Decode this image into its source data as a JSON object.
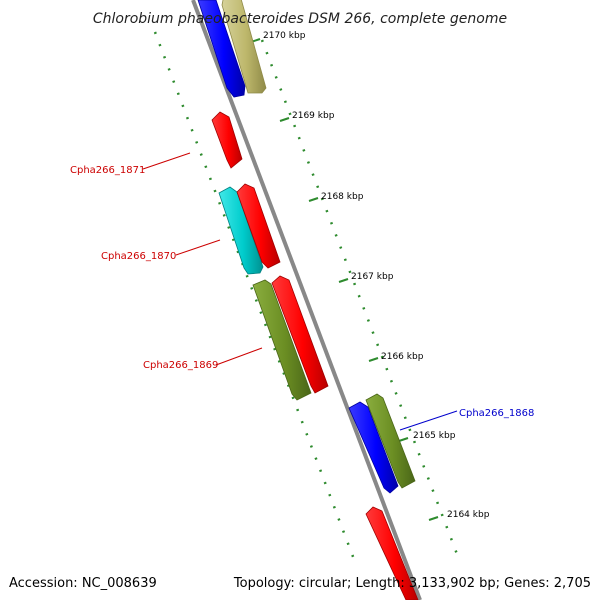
{
  "title": "Chlorobium phaeobacteroides DSM 266, complete genome",
  "footer": {
    "accession": "Accession: NC_008639",
    "topology": "Topology: circular; Length: 3,133,902 bp; Genes: 2,705"
  },
  "ticks": [
    "2170 kbp",
    "2169 kbp",
    "2168 kbp",
    "2167 kbp",
    "2166 kbp",
    "2165 kbp",
    "2164 kbp"
  ],
  "gene_labels": [
    {
      "name": "Cpha266_1871",
      "color": "#cc0000"
    },
    {
      "name": "Cpha266_1870",
      "color": "#cc0000"
    },
    {
      "name": "Cpha266_1869",
      "color": "#cc0000"
    },
    {
      "name": "Cpha266_1868",
      "color": "#0000cc"
    }
  ],
  "colors": {
    "backbone": "#888888",
    "tick_dots": "#2e8b2e",
    "red_gene": "#ff0000",
    "blue_gene": "#0000ff",
    "cyan_gene": "#00cccc",
    "olive_gene": "#6b8e23",
    "khaki_gene": "#bdb76b"
  }
}
